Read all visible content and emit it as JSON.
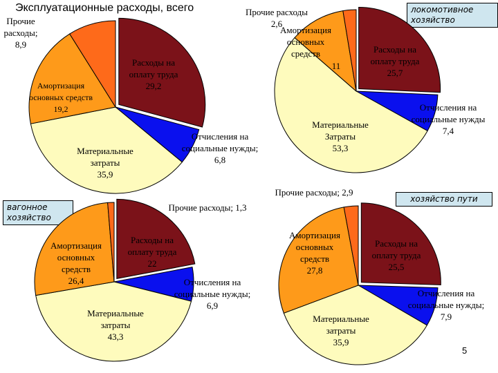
{
  "page": {
    "title": "Эксплуатационные расходы, всего",
    "page_number": "5",
    "tags": {
      "loco": "локомотивное хозяйство",
      "wagon": "вагонное хозяйство",
      "track": "хозяйство пути"
    }
  },
  "colors": {
    "labor": "#7b1219",
    "social": "#0a10ee",
    "materials": "#fefbbd",
    "amortization": "#fe9a1a",
    "other": "#fe6a1a"
  },
  "chart_data": [
    {
      "id": "total",
      "type": "pie",
      "title": "Эксплуатационные расходы, всего",
      "slices": [
        {
          "key": "labor",
          "label": "Расходы на оплату труда",
          "value": 29.2,
          "value_text": "29,2"
        },
        {
          "key": "social",
          "label": "Отчисления на социальные нужды",
          "value": 6.8,
          "value_text": "6,8"
        },
        {
          "key": "materials",
          "label": "Материальные затраты",
          "value": 35.9,
          "value_text": "35,9"
        },
        {
          "key": "amortization",
          "label": "Амортизация основных средств",
          "value": 19.2,
          "value_text": "19,2"
        },
        {
          "key": "other",
          "label": "Прочие расходы",
          "value": 8.9,
          "value_text": "8,9"
        }
      ]
    },
    {
      "id": "loco",
      "type": "pie",
      "title": "локомотивное хозяйство",
      "slices": [
        {
          "key": "labor",
          "label": "Расходы на оплату труда",
          "value": 25.7,
          "value_text": "25,7"
        },
        {
          "key": "social",
          "label": "Отчисления на социальные нужды",
          "value": 7.4,
          "value_text": "7,4"
        },
        {
          "key": "materials",
          "label": "Материальные Затраты",
          "value": 53.3,
          "value_text": "53,3"
        },
        {
          "key": "amortization",
          "label": "Амортизация основных средств",
          "value": 11,
          "value_text": "11"
        },
        {
          "key": "other",
          "label": "Прочие расходы",
          "value": 2.6,
          "value_text": "2,6"
        }
      ]
    },
    {
      "id": "wagon",
      "type": "pie",
      "title": "вагонное хозяйство",
      "slices": [
        {
          "key": "labor",
          "label": "Расходы на оплату труда",
          "value": 22,
          "value_text": "22"
        },
        {
          "key": "social",
          "label": "Отчисления на социальные нужды",
          "value": 6.9,
          "value_text": "6,9"
        },
        {
          "key": "materials",
          "label": "Материальные затраты",
          "value": 43.3,
          "value_text": "43,3"
        },
        {
          "key": "amortization",
          "label": "Амортизация основных средств",
          "value": 26.4,
          "value_text": "26,4"
        },
        {
          "key": "other",
          "label": "Прочие расходы",
          "value": 1.3,
          "value_text": "1,3"
        }
      ]
    },
    {
      "id": "track",
      "type": "pie",
      "title": "хозяйство пути",
      "slices": [
        {
          "key": "labor",
          "label": "Расходы на оплату труда",
          "value": 25.5,
          "value_text": "25,5"
        },
        {
          "key": "social",
          "label": "Отчисления на социальные нужды",
          "value": 7.9,
          "value_text": "7,9"
        },
        {
          "key": "materials",
          "label": "Материальные затраты",
          "value": 35.9,
          "value_text": "35,9"
        },
        {
          "key": "amortization",
          "label": "Амортизация основных средств",
          "value": 27.8,
          "value_text": "27,8"
        },
        {
          "key": "other",
          "label": "Прочие расходы",
          "value": 2.9,
          "value_text": "2,9"
        }
      ]
    }
  ]
}
